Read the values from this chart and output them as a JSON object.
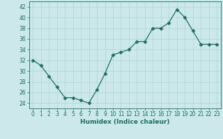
{
  "x": [
    0,
    1,
    2,
    3,
    4,
    5,
    6,
    7,
    8,
    9,
    10,
    11,
    12,
    13,
    14,
    15,
    16,
    17,
    18,
    19,
    20,
    21,
    22,
    23
  ],
  "y": [
    32,
    31,
    29,
    27,
    25,
    25,
    24.5,
    24,
    26.5,
    29.5,
    33,
    33.5,
    34,
    35.5,
    35.5,
    38,
    38,
    39,
    41.5,
    40,
    37.5,
    35,
    35,
    35
  ],
  "line_color": "#1a7060",
  "marker": "D",
  "marker_size": 2.5,
  "bg_color": "#cce8ea",
  "grid_color": "#afd4d6",
  "xlabel": "Humidex (Indice chaleur)",
  "xlim": [
    -0.5,
    23.5
  ],
  "ylim": [
    23,
    43
  ],
  "yticks": [
    24,
    26,
    28,
    30,
    32,
    34,
    36,
    38,
    40,
    42
  ],
  "xticks": [
    0,
    1,
    2,
    3,
    4,
    5,
    6,
    7,
    8,
    9,
    10,
    11,
    12,
    13,
    14,
    15,
    16,
    17,
    18,
    19,
    20,
    21,
    22,
    23
  ],
  "tick_label_size": 5.5,
  "xlabel_size": 6.5,
  "spine_color": "#1a7060",
  "tick_color": "#1a7060"
}
